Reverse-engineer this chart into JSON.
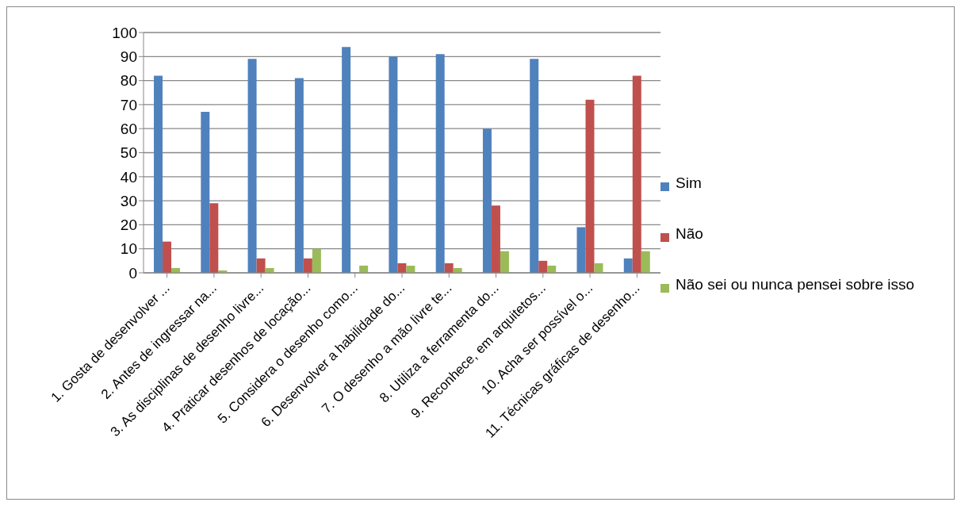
{
  "chart_data": {
    "type": "bar",
    "categories": [
      "1. Gosta de desenvolver ...",
      "2. Antes de ingressar na...",
      "3. As disciplinas de desenho livre...",
      "4. Praticar desenhos de locação...",
      "5. Considera o desenho como...",
      "6. Desenvolver a habilidade do...",
      "7. O desenho a mão livre te...",
      "8. Utiliza a ferramenta do...",
      "9. Reconhece, em arquitetos...",
      "10. Acha ser possível o...",
      "11. Técnicas gráficas de desenho..."
    ],
    "series": [
      {
        "name": "Sim",
        "color": "#4f81bd",
        "values": [
          82,
          67,
          89,
          81,
          94,
          90,
          91,
          60,
          89,
          19,
          6
        ]
      },
      {
        "name": "Não",
        "color": "#c0504d",
        "values": [
          13,
          29,
          6,
          6,
          0,
          4,
          4,
          28,
          5,
          72,
          82
        ]
      },
      {
        "name": "Não sei ou nunca pensei sobre isso",
        "color": "#9bbb59",
        "values": [
          2,
          1,
          2,
          10,
          3,
          3,
          2,
          9,
          3,
          4,
          9
        ]
      }
    ],
    "ylim": [
      0,
      100
    ],
    "yticks": [
      0,
      10,
      20,
      30,
      40,
      50,
      60,
      70,
      80,
      90,
      100
    ],
    "grid": "y",
    "legend": "right"
  }
}
